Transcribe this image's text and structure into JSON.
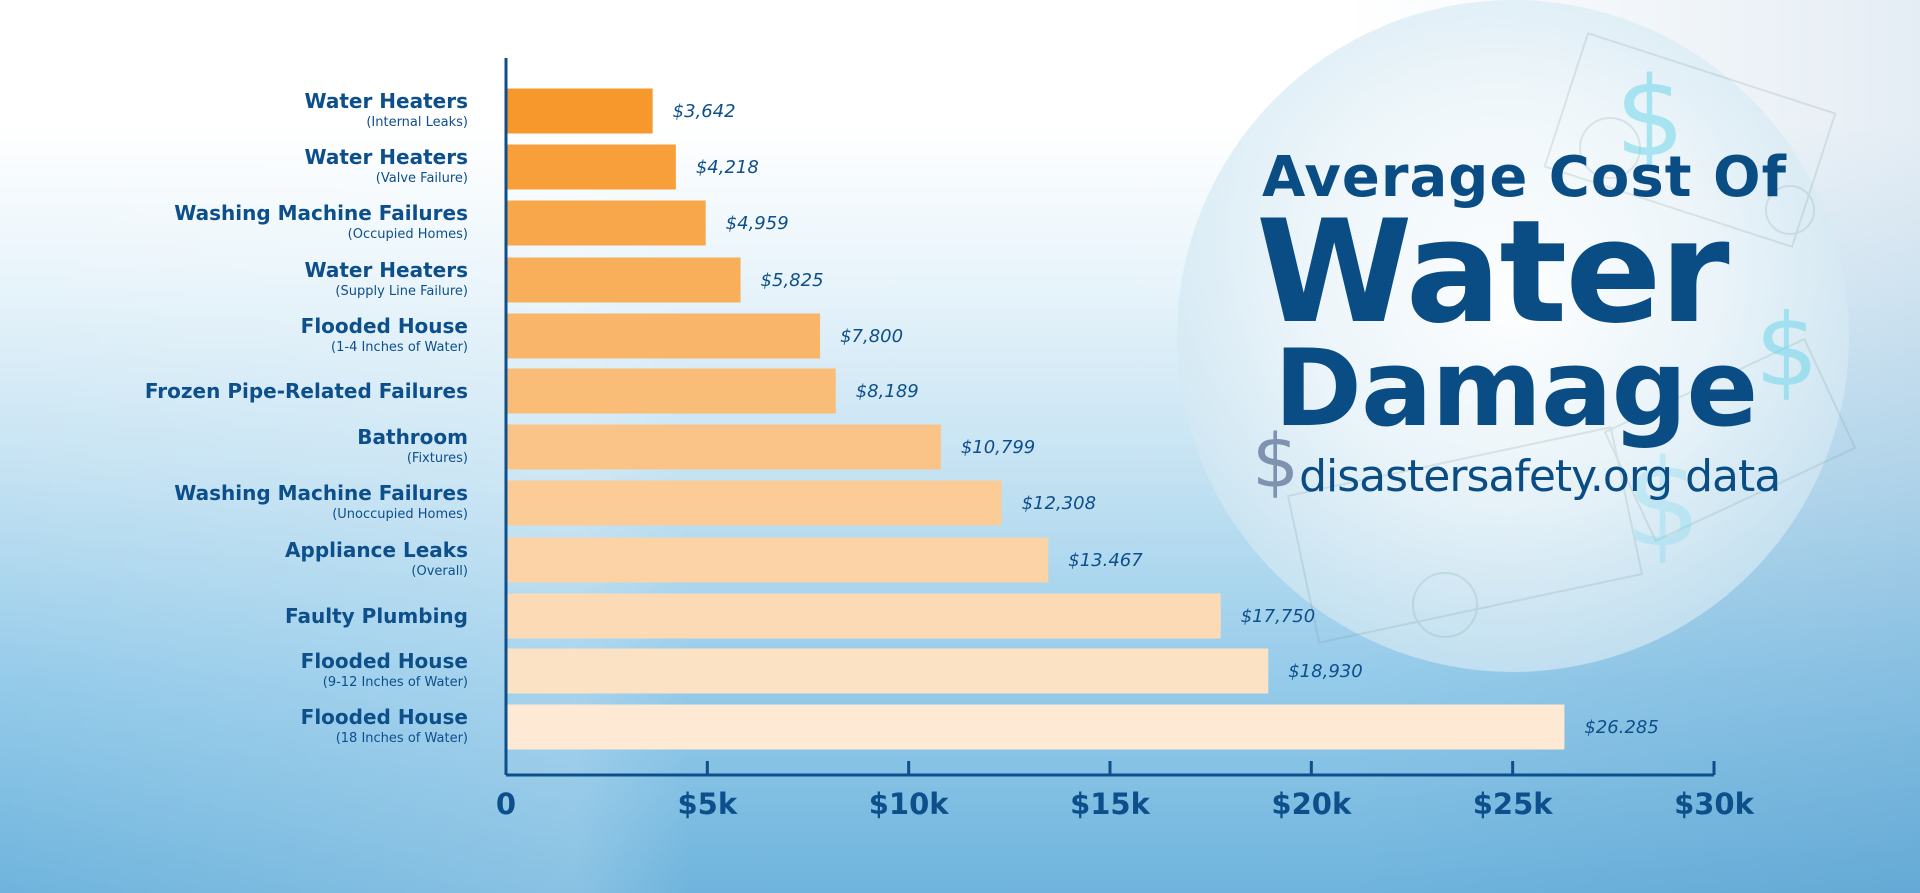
{
  "chart_data": {
    "type": "bar",
    "orientation": "horizontal",
    "title": "Average Cost Of Water Damage",
    "title_lines": [
      "Average Cost Of",
      "Water",
      "Damage"
    ],
    "source_symbol": "$",
    "source": "disastersafety.org data",
    "categories": [
      {
        "title": "Water Heaters",
        "subtitle": "(Internal Leaks)"
      },
      {
        "title": "Water Heaters",
        "subtitle": "(Valve Failure)"
      },
      {
        "title": "Washing Machine Failures",
        "subtitle": "(Occupied Homes)"
      },
      {
        "title": "Water Heaters",
        "subtitle": "(Supply Line Failure)"
      },
      {
        "title": "Flooded House",
        "subtitle": "(1-4 Inches of Water)"
      },
      {
        "title": "Frozen Pipe-Related Failures",
        "subtitle": ""
      },
      {
        "title": "Bathroom",
        "subtitle": "(Fixtures)"
      },
      {
        "title": "Washing Machine Failures",
        "subtitle": "(Unoccupied Homes)"
      },
      {
        "title": "Appliance Leaks",
        "subtitle": "(Overall)"
      },
      {
        "title": "Faulty Plumbing",
        "subtitle": ""
      },
      {
        "title": "Flooded House",
        "subtitle": "(9-12 Inches of Water)"
      },
      {
        "title": "Flooded House",
        "subtitle": "(18 Inches of Water)"
      }
    ],
    "values": [
      3642,
      4218,
      4959,
      5825,
      7800,
      8189,
      10799,
      12308,
      13467,
      17750,
      18930,
      26285
    ],
    "value_labels": [
      "$3,642",
      "$4,218",
      "$4,959",
      "$5,825",
      "$7,800",
      "$8,189",
      "$10,799",
      "$12,308",
      "$13.467",
      "$17,750",
      "$18,930",
      "$26.285"
    ],
    "xlim": [
      0,
      30000
    ],
    "xticks": [
      0,
      5000,
      10000,
      15000,
      20000,
      25000,
      30000
    ],
    "xtick_labels": [
      "0",
      "$5k",
      "$10k",
      "$15k",
      "$20k",
      "$25k",
      "$30k"
    ],
    "xlabel": "",
    "ylabel": "",
    "grid": false,
    "legend": "none",
    "colors": {
      "bar_darkest": "#f7982c",
      "bar_lightest": "#fde9d4",
      "text": "#0d4f8b",
      "title": "#0a4d85",
      "axis": "#0d4f8b",
      "source_symbol": "#7f93b0"
    }
  }
}
